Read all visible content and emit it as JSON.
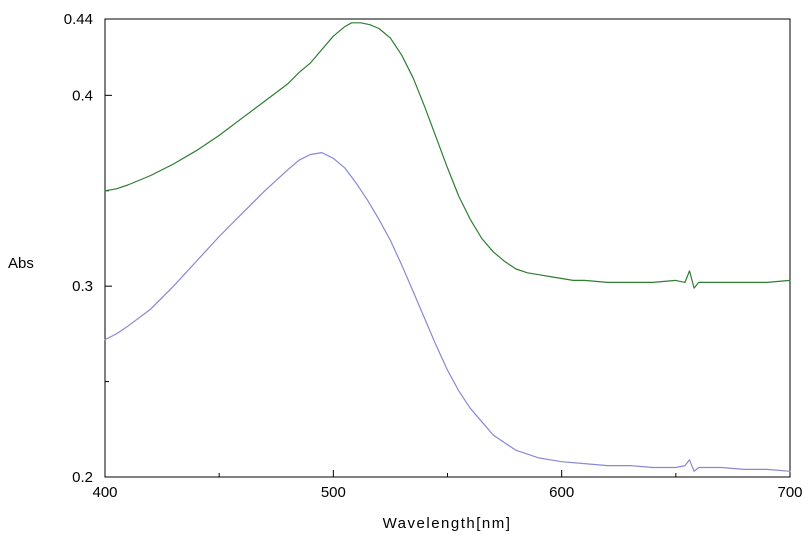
{
  "chart_data": {
    "type": "line",
    "title": "",
    "xlabel": "Wavelength[nm]",
    "ylabel": "Abs",
    "xlim": [
      400,
      700
    ],
    "ylim": [
      0.2,
      0.44
    ],
    "x_ticks": [
      400,
      500,
      600,
      700
    ],
    "x_minor_ticks": [
      450,
      550,
      650
    ],
    "y_ticks": [
      0.2,
      0.3,
      0.4,
      0.44
    ],
    "y_tick_labels": [
      "0.2",
      "0.3",
      "0.4",
      "0.44"
    ],
    "y_minor_ticks": [
      0.25,
      0.35
    ],
    "grid": false,
    "legend": "none",
    "series": [
      {
        "color": "#2e7d32",
        "x": [
          400,
          405,
          410,
          420,
          430,
          440,
          450,
          460,
          470,
          480,
          485,
          490,
          495,
          500,
          505,
          508,
          512,
          516,
          520,
          525,
          530,
          535,
          540,
          545,
          550,
          555,
          560,
          565,
          570,
          575,
          580,
          585,
          590,
          595,
          600,
          605,
          610,
          620,
          630,
          640,
          650,
          654,
          656,
          658,
          660,
          670,
          680,
          690,
          700
        ],
        "y": [
          0.35,
          0.351,
          0.353,
          0.358,
          0.364,
          0.371,
          0.379,
          0.388,
          0.397,
          0.406,
          0.412,
          0.417,
          0.424,
          0.431,
          0.436,
          0.438,
          0.438,
          0.437,
          0.435,
          0.43,
          0.421,
          0.409,
          0.394,
          0.378,
          0.362,
          0.347,
          0.335,
          0.325,
          0.318,
          0.313,
          0.309,
          0.307,
          0.306,
          0.305,
          0.304,
          0.303,
          0.303,
          0.302,
          0.302,
          0.302,
          0.303,
          0.302,
          0.308,
          0.299,
          0.302,
          0.302,
          0.302,
          0.302,
          0.303
        ]
      },
      {
        "color": "#8a87d4",
        "x": [
          400,
          405,
          410,
          420,
          430,
          440,
          450,
          460,
          470,
          480,
          485,
          490,
          495,
          500,
          505,
          510,
          515,
          520,
          525,
          530,
          535,
          540,
          545,
          550,
          555,
          560,
          565,
          570,
          575,
          580,
          585,
          590,
          595,
          600,
          610,
          620,
          630,
          640,
          650,
          654,
          656,
          658,
          660,
          670,
          680,
          690,
          700
        ],
        "y": [
          0.272,
          0.275,
          0.279,
          0.288,
          0.3,
          0.313,
          0.326,
          0.338,
          0.35,
          0.361,
          0.366,
          0.369,
          0.37,
          0.367,
          0.362,
          0.354,
          0.345,
          0.335,
          0.324,
          0.311,
          0.297,
          0.283,
          0.269,
          0.256,
          0.245,
          0.236,
          0.229,
          0.222,
          0.218,
          0.214,
          0.212,
          0.21,
          0.209,
          0.208,
          0.207,
          0.206,
          0.206,
          0.205,
          0.205,
          0.206,
          0.209,
          0.203,
          0.205,
          0.205,
          0.204,
          0.204,
          0.203
        ]
      }
    ]
  }
}
